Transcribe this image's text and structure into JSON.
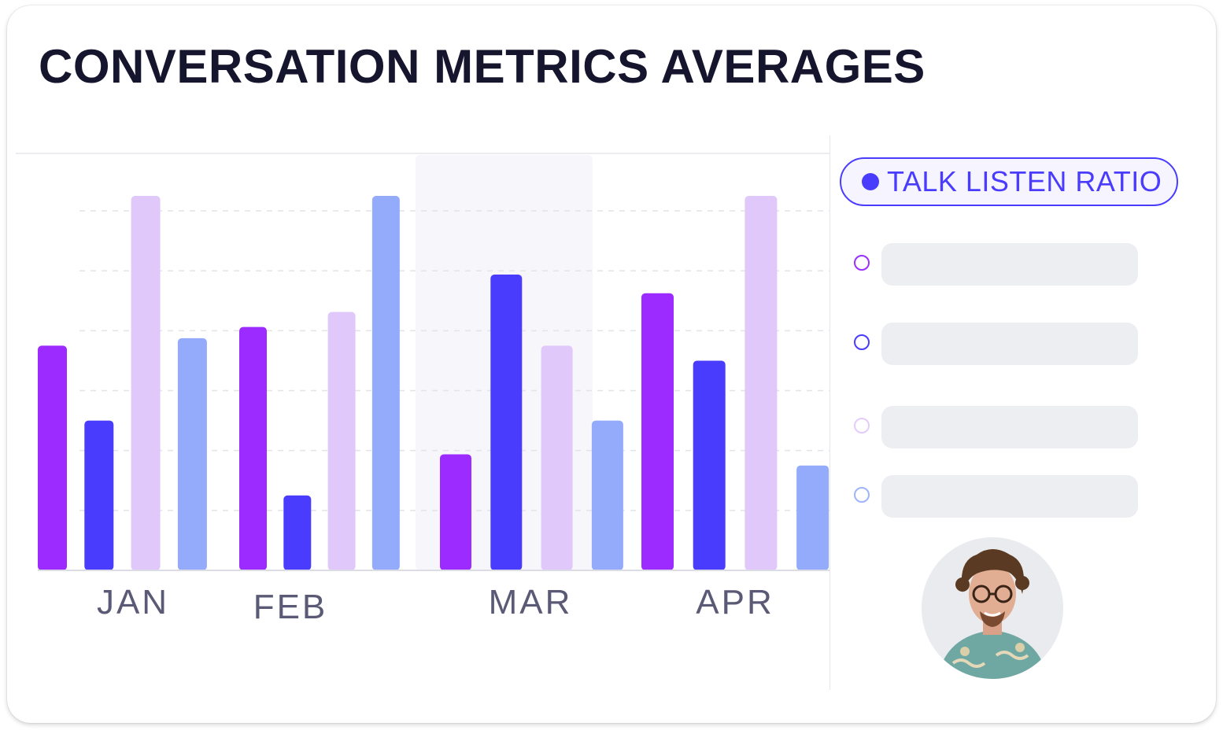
{
  "chart_data": {
    "type": "bar",
    "title": "CONVERSATION METRICS AVERAGES",
    "categories": [
      "JAN",
      "FEB",
      "MAR",
      "APR"
    ],
    "highlighted_category": "MAR",
    "ylim": [
      0,
      100
    ],
    "grid": true,
    "legend_position": "right",
    "series": [
      {
        "name": "TALK LISTEN RATIO",
        "color": "#9b2bff",
        "values": [
          60,
          65,
          31,
          74
        ]
      },
      {
        "color": "#4a3cfd",
        "values": [
          40,
          20,
          79,
          56
        ]
      },
      {
        "color": "#e0c8fa",
        "values": [
          100,
          69,
          60,
          100
        ]
      },
      {
        "color": "#94abfc",
        "values": [
          62,
          100,
          40,
          28
        ]
      }
    ]
  },
  "legend": {
    "active": {
      "label": "TALK LISTEN RATIO",
      "color": "#4a3cfd"
    },
    "rows": [
      {
        "ring_color": "#9b30fd"
      },
      {
        "ring_color": "#4a3cfd"
      },
      {
        "ring_color": "#e3cbfb"
      },
      {
        "ring_color": "#9db4fb"
      }
    ]
  },
  "colors": {
    "title": "#16152e",
    "tick_label": "#5b5a76",
    "grid": "#e3e3e8",
    "highlight_band": "#f7f7fb",
    "legend_placeholder": "#eceef1"
  }
}
